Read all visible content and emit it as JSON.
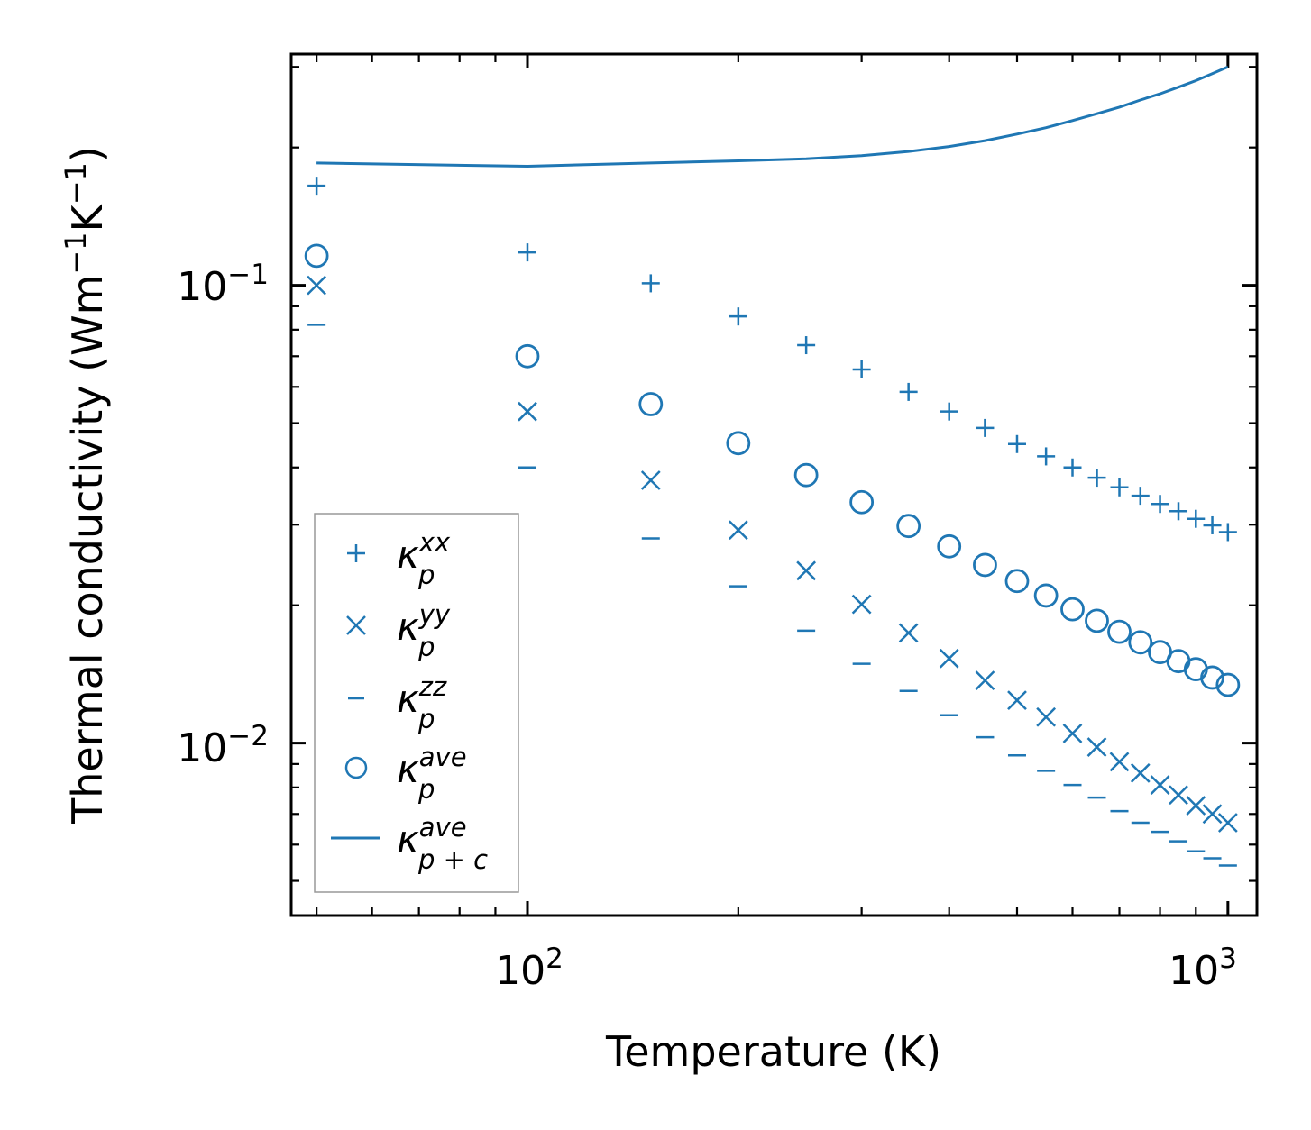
{
  "chart_data": {
    "type": "scatter",
    "xscale": "log",
    "yscale": "log",
    "xlabel": "Temperature (K)",
    "ylabel_text": "Thermal conductivity (Wm",
    "ylabel_exp1": "−1",
    "ylabel_mid": "K",
    "ylabel_exp2": "−1",
    "ylabel_close": ")",
    "xlim": [
      46,
      1100
    ],
    "ylim": [
      0.0042,
      0.32
    ],
    "x_major_ticks": [
      {
        "value": 100,
        "base": "10",
        "exp": "2"
      },
      {
        "value": 1000,
        "base": "10",
        "exp": "3"
      }
    ],
    "y_major_ticks": [
      {
        "value": 0.1,
        "base": "10",
        "exp": "−1"
      },
      {
        "value": 0.01,
        "base": "10",
        "exp": "−2"
      }
    ],
    "x": [
      50,
      100,
      150,
      200,
      250,
      300,
      350,
      400,
      450,
      500,
      550,
      600,
      650,
      700,
      750,
      800,
      850,
      900,
      950,
      1000
    ],
    "series": [
      {
        "name": "xx",
        "marker": "plus",
        "label_base": "κ",
        "label_sup": "xx",
        "label_sub": "p",
        "values": [
          0.165,
          0.118,
          0.101,
          0.0855,
          0.074,
          0.0655,
          0.0585,
          0.053,
          0.0488,
          0.045,
          0.0423,
          0.04,
          0.038,
          0.0362,
          0.0347,
          0.0333,
          0.0321,
          0.0309,
          0.0299,
          0.0289
        ]
      },
      {
        "name": "yy",
        "marker": "cross",
        "label_base": "κ",
        "label_sup": "yy",
        "label_sub": "p",
        "values": [
          0.1,
          0.053,
          0.0375,
          0.0292,
          0.0238,
          0.0201,
          0.0174,
          0.0153,
          0.0137,
          0.0124,
          0.0114,
          0.0105,
          0.0098,
          0.0091,
          0.0086,
          0.0081,
          0.0077,
          0.0073,
          0.007,
          0.0067
        ]
      },
      {
        "name": "zz",
        "marker": "hline",
        "label_base": "κ",
        "label_sup": "zz",
        "label_sub": "p",
        "values": [
          0.082,
          0.04,
          0.028,
          0.022,
          0.0176,
          0.0149,
          0.013,
          0.0115,
          0.0103,
          0.0094,
          0.0087,
          0.0081,
          0.0076,
          0.0071,
          0.0067,
          0.0064,
          0.0061,
          0.0058,
          0.0056,
          0.0054
        ]
      },
      {
        "name": "ave",
        "marker": "circle",
        "label_base": "κ",
        "label_sup": "ave",
        "label_sub": "p",
        "values": [
          0.116,
          0.07,
          0.055,
          0.0452,
          0.0385,
          0.0336,
          0.0298,
          0.0269,
          0.0245,
          0.0226,
          0.021,
          0.0196,
          0.0185,
          0.0175,
          0.0166,
          0.0158,
          0.0151,
          0.0145,
          0.0139,
          0.0134
        ]
      },
      {
        "name": "ave_total",
        "marker": "line",
        "label_base": "κ",
        "label_sup": "ave",
        "label_sub": "p + c",
        "values": [
          0.185,
          0.182,
          0.185,
          0.187,
          0.189,
          0.192,
          0.196,
          0.201,
          0.207,
          0.214,
          0.221,
          0.229,
          0.237,
          0.245,
          0.254,
          0.262,
          0.271,
          0.28,
          0.29,
          0.3
        ]
      }
    ],
    "legend_location": "lower-left",
    "grid": false,
    "color": "#1f77b4"
  }
}
